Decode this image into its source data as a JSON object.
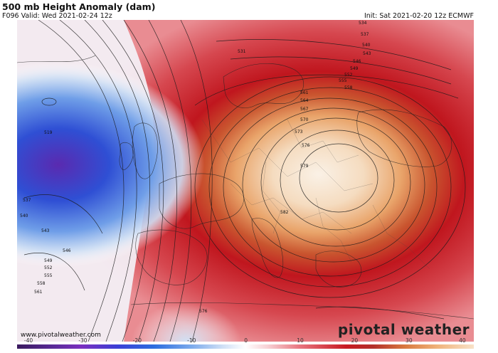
{
  "header": {
    "title": "500 mb Height Anomaly (dam)",
    "valid": "F096 Valid: Wed 2021-02-24 12z",
    "init": "Init: Sat 2021-02-20 12z ECMWF"
  },
  "footer": {
    "site": "www.pivotalweather.com",
    "brand": "pivotal weather"
  },
  "colorbar": {
    "ticks": [
      "-40",
      "-30",
      "-20",
      "-10",
      "0",
      "10",
      "20",
      "30",
      "40"
    ],
    "colors": [
      "#3a1a5e",
      "#7a2fbf",
      "#2c6ddf",
      "#cfe0f5",
      "#ffffff",
      "#e8747e",
      "#c81a22",
      "#d97a40",
      "#f8e2c8"
    ]
  },
  "map": {
    "region": "Europe / North Atlantic",
    "anomaly_colors": {
      "negative": "#3a4fd0",
      "neutral": "#ffffff",
      "positive": "#c0161e",
      "strong_positive": "#e8a060"
    },
    "contour_labels": [
      "534",
      "537",
      "540",
      "543",
      "546",
      "549",
      "552",
      "555",
      "558",
      "561",
      "564",
      "567",
      "570",
      "573",
      "576",
      "579",
      "582",
      "531",
      "519",
      "537",
      "540",
      "543",
      "546",
      "549",
      "552",
      "555",
      "558",
      "561",
      "576"
    ]
  }
}
